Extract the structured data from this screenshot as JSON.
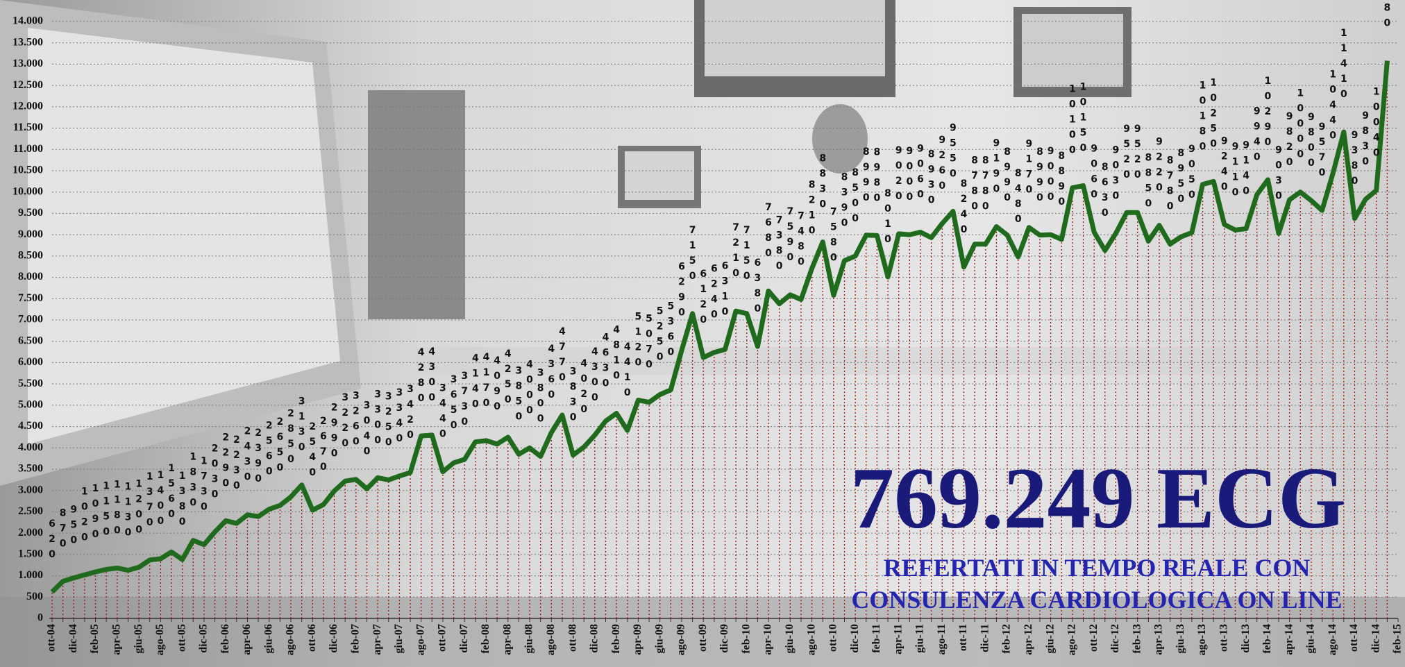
{
  "chart_data": {
    "type": "line",
    "categories": [
      "ott-04",
      null,
      "dic-04",
      null,
      "feb-05",
      null,
      "apr-05",
      null,
      "giu-05",
      null,
      "ago-05",
      null,
      "ott-05",
      null,
      "dic-05",
      null,
      "feb-06",
      null,
      "apr-06",
      null,
      "giu-06",
      null,
      "ago-06",
      null,
      "ott-06",
      null,
      "dic-06",
      null,
      "feb-07",
      null,
      "apr-07",
      null,
      "giu-07",
      null,
      "ago-07",
      null,
      "ott-07",
      null,
      "dic-07",
      null,
      "feb-08",
      null,
      "apr-08",
      null,
      "giu-08",
      null,
      "ago-08",
      null,
      "ott-08",
      null,
      "dic-08",
      null,
      "feb-09",
      null,
      "apr-09",
      null,
      "giu-09",
      null,
      "ago-09",
      null,
      "ott-09",
      null,
      "dic-09",
      null,
      "feb-10",
      null,
      "apr-10",
      null,
      "giu-10",
      null,
      "ago-10",
      null,
      "ott-10",
      null,
      "dic-10",
      null,
      "feb-11",
      null,
      "apr-11",
      null,
      "giu-11",
      null,
      "ago-11",
      null,
      "ott-11",
      null,
      "dic-11",
      null,
      "feb-12",
      null,
      "apr-12",
      null,
      "giu-12",
      null,
      "ago-12",
      null,
      "ott-12",
      null,
      "dic-12",
      null,
      "feb-13",
      null,
      "apr-13",
      null,
      "giu-13",
      null,
      "ago-13",
      null,
      "ott-13",
      null,
      "dic-13",
      null,
      "feb-14",
      null,
      "apr-14",
      null,
      "giu-14",
      null,
      "ago-14",
      null,
      "ott-14",
      null,
      "dic-14",
      null,
      "feb-15"
    ],
    "values": [
      620,
      870,
      950,
      1020,
      1090,
      1150,
      1180,
      1130,
      1200,
      1370,
      1400,
      1560,
      1380,
      1830,
      1730,
      2030,
      2290,
      2230,
      2430,
      2390,
      2560,
      2650,
      2850,
      3130,
      2540,
      2670,
      2990,
      3220,
      3260,
      3040,
      3300,
      3250,
      3340,
      3420,
      4280,
      4300,
      3440,
      3650,
      3730,
      4140,
      4170,
      4090,
      4250,
      3850,
      4000,
      3800,
      4360,
      4770,
      3830,
      4020,
      4300,
      4630,
      4810,
      4410,
      5120,
      5070,
      5250,
      5360,
      6290,
      7150,
      6120,
      6240,
      6310,
      7210,
      7150,
      6380,
      7680,
      7380,
      7590,
      7480,
      8210,
      8830,
      7580,
      8390,
      8500,
      8990,
      8980,
      8010,
      9020,
      9000,
      9060,
      8930,
      9260,
      9550,
      8240,
      8780,
      8780,
      9190,
      8990,
      8480,
      9170,
      8990,
      9000,
      8890,
      10100,
      10150,
      9060,
      8630,
      9030,
      9520,
      9520,
      8850,
      9220,
      8780,
      8950,
      9050,
      10180,
      10250,
      9240,
      9110,
      9140,
      9940,
      10290,
      9030,
      9820,
      10000,
      9800,
      9570,
      10440,
      11410,
      9380,
      9830,
      10040,
      13080,
      null
    ],
    "color": "#1f6a1c",
    "ylim": [
      0,
      14000
    ],
    "yticks": [
      0,
      500,
      {
        "value": 1000,
        "label": "1.000"
      },
      {
        "value": 1500,
        "label": "1.500"
      },
      {
        "value": 2000,
        "label": "2.000"
      },
      {
        "value": 2500,
        "label": "2.500"
      },
      {
        "value": 3000,
        "label": "3.000"
      },
      {
        "value": 3500,
        "label": "3.500"
      },
      {
        "value": 4000,
        "label": "4.000"
      },
      {
        "value": 4500,
        "label": "4.500"
      },
      {
        "value": 5000,
        "label": "5.000"
      },
      {
        "value": 5500,
        "label": "5.500"
      },
      {
        "value": 6000,
        "label": "6.000"
      },
      {
        "value": 6500,
        "label": "6.500"
      },
      {
        "value": 7000,
        "label": "7.000"
      },
      {
        "value": 7500,
        "label": "7.500"
      },
      {
        "value": 8000,
        "label": "8.000"
      },
      {
        "value": 8500,
        "label": "8.500"
      },
      {
        "value": 9000,
        "label": "9.000"
      },
      {
        "value": 9500,
        "label": "9.500"
      },
      {
        "value": 10000,
        "label": "10.000"
      },
      {
        "value": 10500,
        "label": "10.500"
      },
      {
        "value": 11000,
        "label": "11.000"
      },
      {
        "value": 11500,
        "label": "11.500"
      },
      {
        "value": 12000,
        "label": "12.000"
      },
      {
        "value": 12500,
        "label": "12.500"
      },
      {
        "value": 13000,
        "label": "13.000"
      },
      {
        "value": 13500,
        "label": "13.500"
      },
      {
        "value": 14000,
        "label": "14.000"
      }
    ],
    "grid": true,
    "annotations": [
      "769.249 ECG",
      "REFERTATI IN TEMPO REALE CON",
      "CONSULENZA CARDIOLOGICA ON LINE"
    ]
  }
}
